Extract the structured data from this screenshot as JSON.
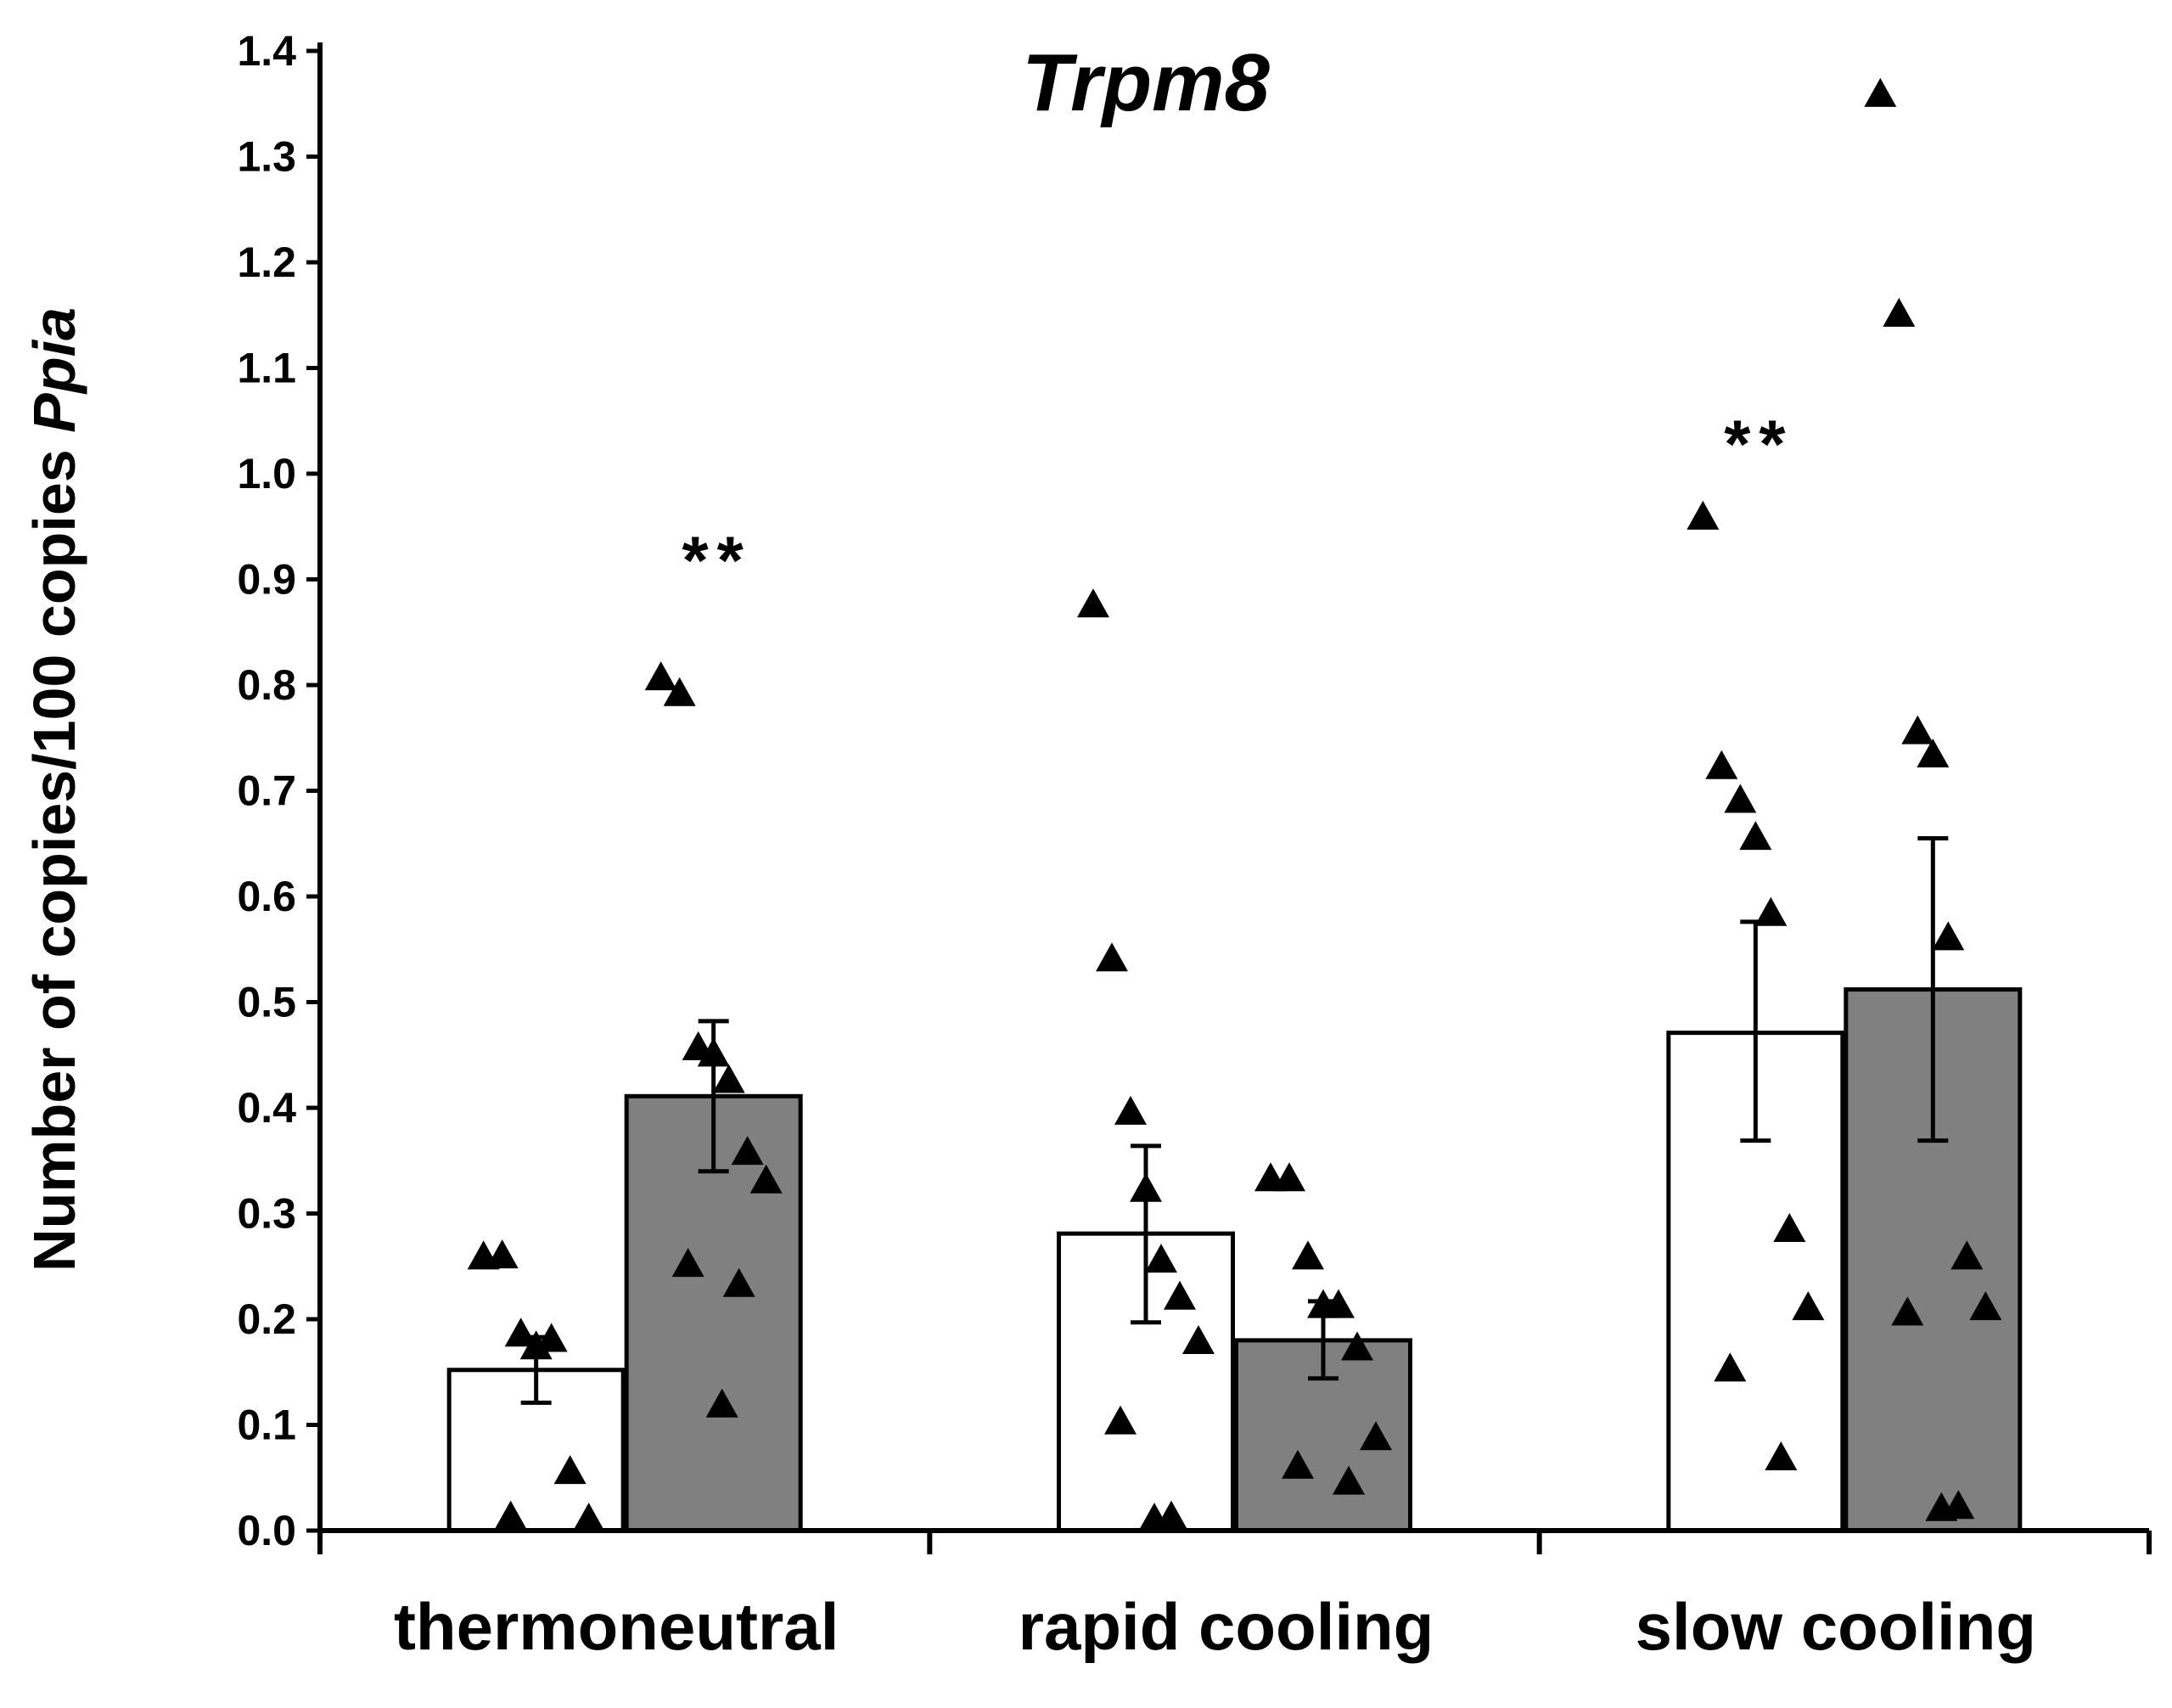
{
  "chart_data": {
    "type": "bar",
    "title": "Trpm8",
    "ylabel_parts": [
      {
        "text": "Number of copies/100 copies ",
        "italic": false
      },
      {
        "text": "Ppia",
        "italic": true
      }
    ],
    "xlabel": "",
    "categories": [
      "thermoneutral",
      "rapid cooling",
      "slow cooling"
    ],
    "ylim": [
      0.0,
      1.4
    ],
    "yticks": [
      "0.0",
      "0.1",
      "0.2",
      "0.3",
      "0.4",
      "0.5",
      "0.6",
      "0.7",
      "0.8",
      "0.9",
      "1.0",
      "1.1",
      "1.2",
      "1.3",
      "1.4"
    ],
    "grid": false,
    "legend": "none",
    "series": [
      {
        "color": "#ffffff",
        "values": [
          0.152,
          0.281,
          0.471
        ],
        "error": [
          [
            0.121,
            0.183
          ],
          [
            0.197,
            0.364
          ],
          [
            0.369,
            0.576
          ]
        ],
        "points": [
          [
            0.258,
            0.259,
            0.185,
            0.173,
            0.18,
            0.055,
            0.01,
            0.012
          ],
          [
            0.875,
            0.54,
            0.395,
            0.322,
            0.255,
            0.22,
            0.178,
            0.102,
            0.012,
            0.01
          ],
          [
            0.958,
            0.722,
            0.69,
            0.655,
            0.583,
            0.284,
            0.21,
            0.152,
            0.068
          ]
        ]
      },
      {
        "color": "#808080",
        "values": [
          0.411,
          0.18,
          0.512
        ],
        "error": [
          [
            0.34,
            0.482
          ],
          [
            0.144,
            0.217
          ],
          [
            0.369,
            0.655
          ]
        ],
        "points": [
          [
            0.806,
            0.791,
            0.456,
            0.45,
            0.425,
            0.357,
            0.33,
            0.251,
            0.232,
            0.118
          ],
          [
            0.332,
            0.332,
            0.258,
            0.212,
            0.212,
            0.172,
            0.087,
            0.06,
            0.045
          ],
          [
            1.358,
            1.15,
            0.755,
            0.733,
            0.56,
            0.258,
            0.21,
            0.205,
            0.022,
            0.02
          ]
        ]
      }
    ],
    "annotations": [
      {
        "text": "**",
        "category": 0,
        "series": 1,
        "y": 0.92
      },
      {
        "text": "**",
        "category": 2,
        "series": 0,
        "y": 1.03
      }
    ]
  },
  "style": {
    "axis_color": "#000000",
    "bar_edge": "#000000",
    "marker_color": "#000000"
  }
}
